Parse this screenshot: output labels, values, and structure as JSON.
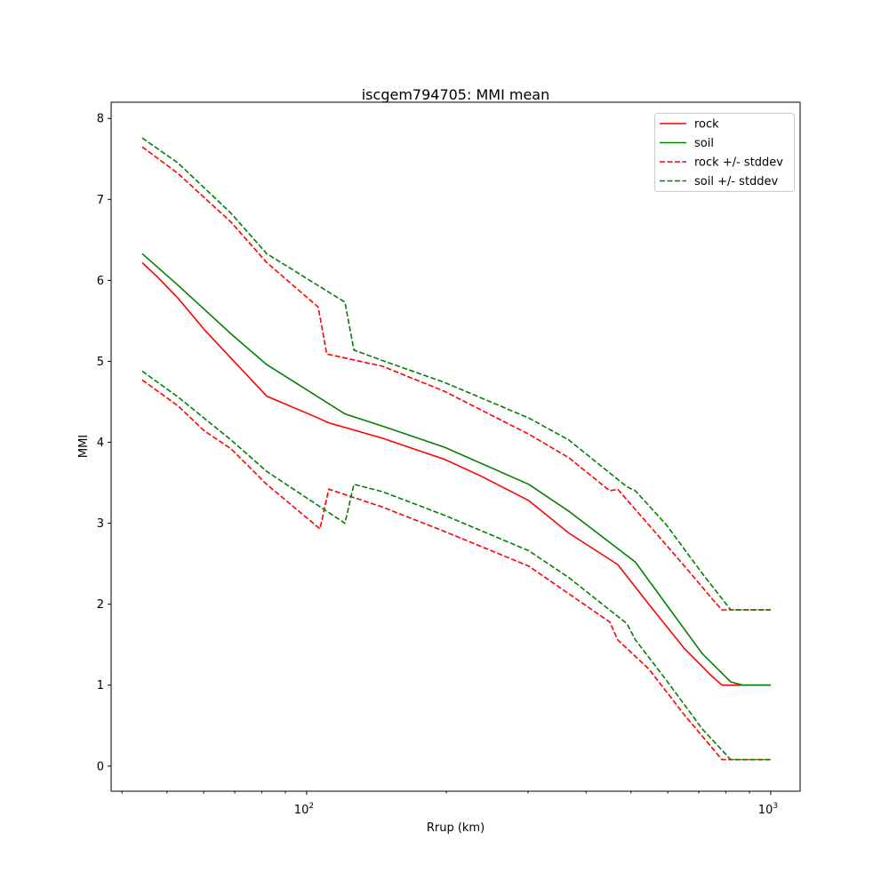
{
  "chart_data": {
    "type": "line",
    "title": "iscgem794705: MMI mean",
    "xlabel": "Rrup (km)",
    "ylabel": "MMI",
    "xscale": "log",
    "xlim": [
      37.9,
      1157
    ],
    "ylim": [
      -0.31,
      8.2
    ],
    "xticks": [
      {
        "value": 100,
        "base": "10",
        "exp": "2"
      },
      {
        "value": 1000,
        "base": "10",
        "exp": "3"
      }
    ],
    "yticks": [
      0,
      1,
      2,
      3,
      4,
      5,
      6,
      7,
      8
    ],
    "grid": false,
    "legend_position": "top-right",
    "series": [
      {
        "name": "rock",
        "color": "#ff0000",
        "dashed": false,
        "x": [
          44.2,
          47.9,
          52.8,
          60.2,
          68.7,
          82.0,
          105.9,
          111.6,
          145.5,
          198,
          236,
          301,
          367,
          468,
          546,
          652,
          744,
          785,
          1000
        ],
        "y": [
          6.22,
          6.03,
          5.78,
          5.39,
          5.04,
          4.57,
          4.3,
          4.24,
          4.05,
          3.79,
          3.59,
          3.28,
          2.88,
          2.49,
          2.0,
          1.45,
          1.12,
          1.0,
          1.0
        ]
      },
      {
        "name": "soil",
        "color": "#008000",
        "dashed": false,
        "x": [
          44.2,
          52.8,
          68.7,
          82.0,
          120.9,
          145.5,
          198,
          301,
          367,
          511,
          712,
          820,
          870,
          1000
        ],
        "y": [
          6.33,
          5.94,
          5.34,
          4.96,
          4.35,
          4.2,
          3.94,
          3.48,
          3.15,
          2.52,
          1.39,
          1.04,
          1.0,
          1.0
        ]
      },
      {
        "name": "rock +/- stddev",
        "color": "#ff0000",
        "dashed": true,
        "x": [
          44.2,
          52.8,
          68.7,
          82.0,
          105.9,
          110.5,
          145.5,
          198,
          301,
          367,
          450,
          468,
          546,
          652,
          744,
          785,
          1000
        ],
        "y": [
          7.65,
          7.32,
          6.72,
          6.22,
          5.67,
          5.09,
          4.94,
          4.63,
          4.1,
          3.81,
          3.4,
          3.42,
          2.98,
          2.47,
          2.08,
          1.93,
          1.93
        ]
      },
      {
        "name": "",
        "color": "#ff0000",
        "dashed": true,
        "x": [
          44.2,
          52.8,
          60.2,
          68.7,
          82.0,
          106.8,
          111.6,
          145.5,
          198,
          301,
          367,
          450,
          468,
          546,
          652,
          744,
          785,
          1000
        ],
        "y": [
          4.77,
          4.45,
          4.14,
          3.92,
          3.48,
          2.93,
          3.42,
          3.2,
          2.9,
          2.47,
          2.13,
          1.78,
          1.56,
          1.2,
          0.63,
          0.24,
          0.08,
          0.08
        ]
      },
      {
        "name": "soil +/- stddev",
        "color": "#008000",
        "dashed": true,
        "x": [
          44.2,
          52.8,
          68.7,
          82.0,
          120.9,
          126.4,
          145.5,
          198,
          301,
          367,
          490,
          511,
          596,
          712,
          820,
          1000
        ],
        "y": [
          7.76,
          7.45,
          6.83,
          6.33,
          5.73,
          5.14,
          5.01,
          4.74,
          4.3,
          4.03,
          3.45,
          3.4,
          2.98,
          2.38,
          1.93,
          1.93
        ]
      },
      {
        "name": "",
        "color": "#008000",
        "dashed": true,
        "x": [
          44.2,
          52.8,
          68.7,
          82.0,
          120.9,
          126.4,
          145.5,
          198,
          301,
          367,
          490,
          511,
          596,
          712,
          820,
          1000
        ],
        "y": [
          4.88,
          4.56,
          4.03,
          3.64,
          3.0,
          3.48,
          3.39,
          3.1,
          2.66,
          2.33,
          1.76,
          1.56,
          1.06,
          0.46,
          0.08,
          0.08
        ]
      }
    ]
  }
}
